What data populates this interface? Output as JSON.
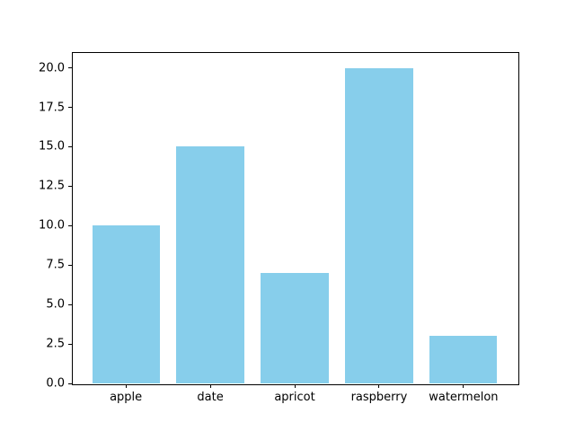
{
  "chart_data": {
    "type": "bar",
    "categories": [
      "apple",
      "date",
      "apricot",
      "raspberry",
      "watermelon"
    ],
    "values": [
      10,
      15,
      7,
      20,
      3
    ],
    "title": "",
    "xlabel": "",
    "ylabel": "",
    "ylim": [
      0,
      21
    ],
    "yticks": [
      0.0,
      2.5,
      5.0,
      7.5,
      10.0,
      12.5,
      15.0,
      17.5,
      20.0
    ],
    "ytick_labels": [
      "0.0",
      "2.5",
      "5.0",
      "7.5",
      "10.0",
      "12.5",
      "15.0",
      "17.5",
      "20.0"
    ],
    "bar_color": "#87ceeb",
    "grid": false,
    "legend": null
  },
  "figure": {
    "background": "#ffffff",
    "spine_color": "#000000",
    "text_color": "#000000"
  }
}
